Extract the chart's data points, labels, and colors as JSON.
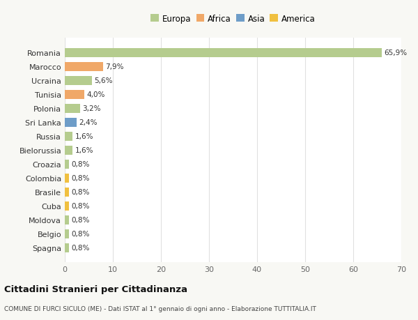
{
  "categories": [
    "Romania",
    "Marocco",
    "Ucraina",
    "Tunisia",
    "Polonia",
    "Sri Lanka",
    "Russia",
    "Bielorussia",
    "Croazia",
    "Colombia",
    "Brasile",
    "Cuba",
    "Moldova",
    "Belgio",
    "Spagna"
  ],
  "values": [
    65.9,
    7.9,
    5.6,
    4.0,
    3.2,
    2.4,
    1.6,
    1.6,
    0.8,
    0.8,
    0.8,
    0.8,
    0.8,
    0.8,
    0.8
  ],
  "labels": [
    "65,9%",
    "7,9%",
    "5,6%",
    "4,0%",
    "3,2%",
    "2,4%",
    "1,6%",
    "1,6%",
    "0,8%",
    "0,8%",
    "0,8%",
    "0,8%",
    "0,8%",
    "0,8%",
    "0,8%"
  ],
  "colors": [
    "#b5cc8e",
    "#f0a868",
    "#b5cc8e",
    "#f0a868",
    "#b5cc8e",
    "#6e9dc8",
    "#b5cc8e",
    "#b5cc8e",
    "#b5cc8e",
    "#f0c040",
    "#f0c040",
    "#f0c040",
    "#b5cc8e",
    "#b5cc8e",
    "#b5cc8e"
  ],
  "legend": [
    {
      "label": "Europa",
      "color": "#b5cc8e"
    },
    {
      "label": "Africa",
      "color": "#f0a868"
    },
    {
      "label": "Asia",
      "color": "#6e9dc8"
    },
    {
      "label": "America",
      "color": "#f0c040"
    }
  ],
  "xlim": [
    0,
    70
  ],
  "xticks": [
    0,
    10,
    20,
    30,
    40,
    50,
    60,
    70
  ],
  "title": "Cittadini Stranieri per Cittadinanza",
  "subtitle": "COMUNE DI FURCI SICULO (ME) - Dati ISTAT al 1° gennaio di ogni anno - Elaborazione TUTTITALIA.IT",
  "background_color": "#f8f8f4",
  "bar_bg_color": "#ffffff",
  "grid_color": "#e0e0e0"
}
